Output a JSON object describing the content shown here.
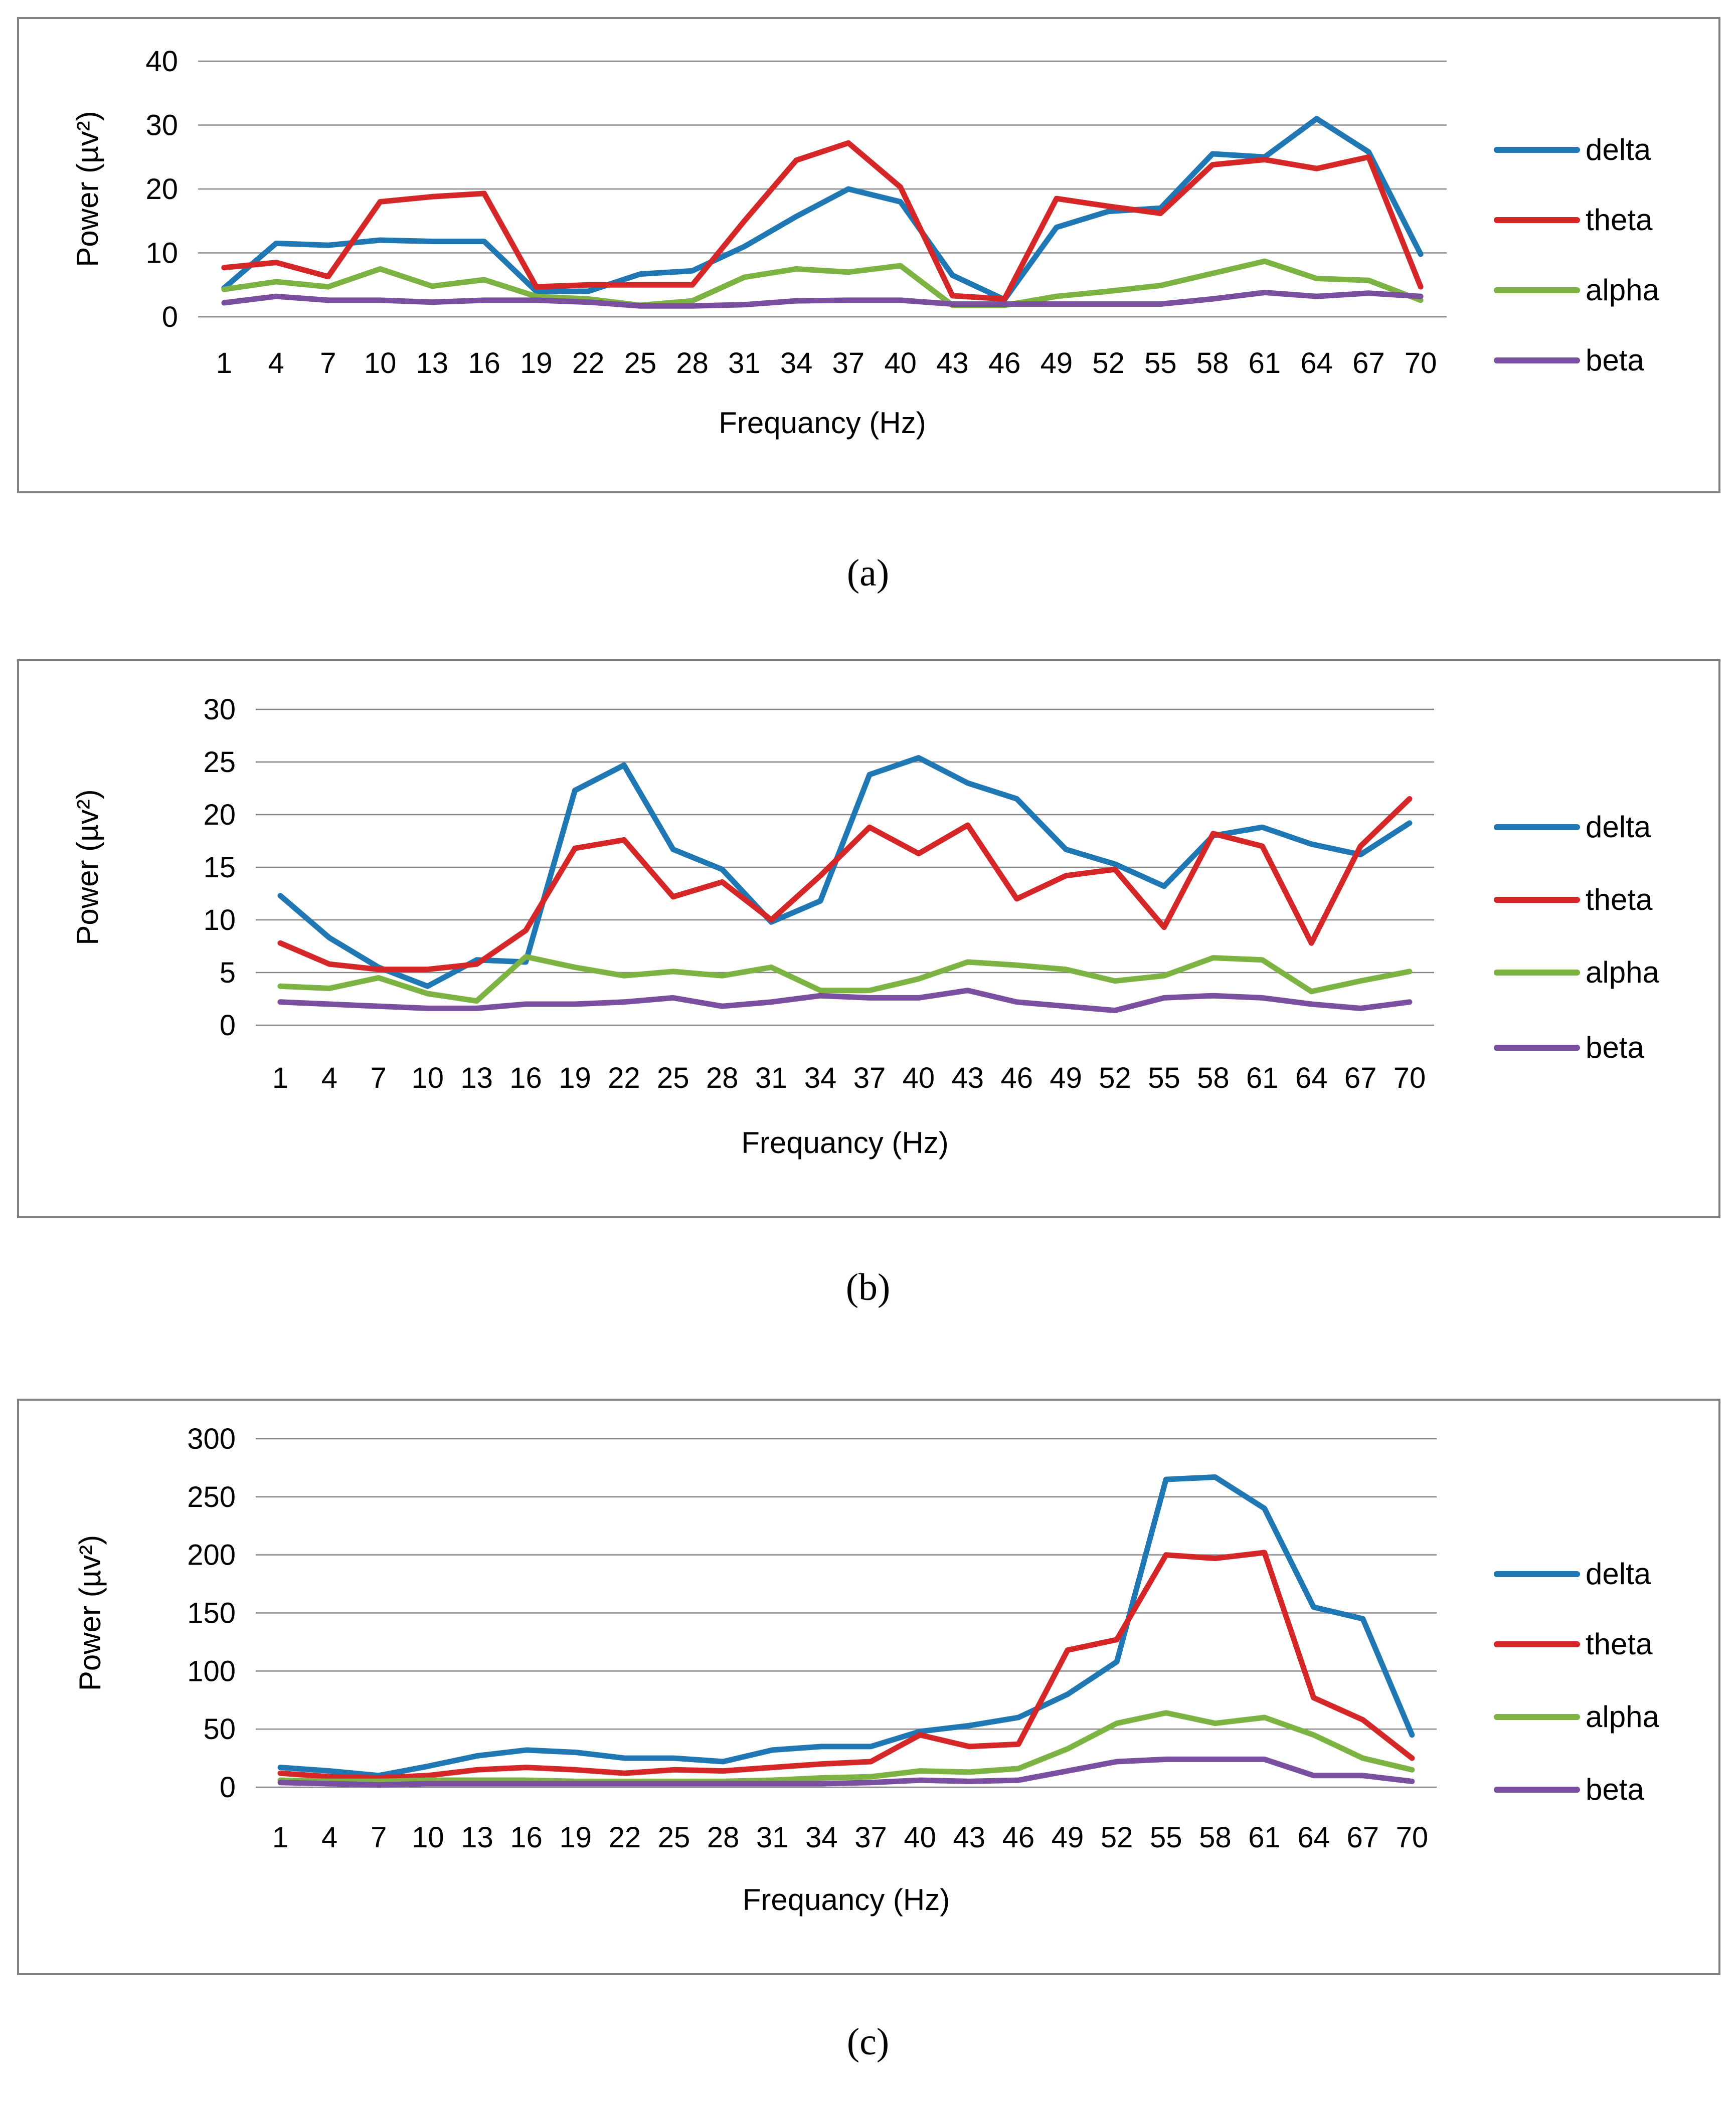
{
  "colors": {
    "delta": "#1f77b4",
    "theta": "#d62728",
    "alpha": "#7cb342",
    "beta": "#7b4fa0"
  },
  "chart_data": [
    {
      "type": "line",
      "caption": "(a)",
      "xlabel": "Frequancy (Hz)",
      "ylabel": "Power (µv²)",
      "ylim": [
        0,
        40
      ],
      "yticks": [
        0,
        10,
        20,
        30,
        40
      ],
      "grid": true,
      "legend": "right",
      "x": [
        1,
        4,
        7,
        10,
        13,
        16,
        19,
        22,
        25,
        28,
        31,
        34,
        37,
        40,
        43,
        46,
        49,
        52,
        55,
        58,
        61,
        64,
        67,
        70
      ],
      "series": [
        {
          "name": "delta",
          "values": [
            4.5,
            11.5,
            11.2,
            12,
            11.8,
            11.8,
            4,
            4,
            6.7,
            7.2,
            11,
            15.7,
            20,
            18,
            6.5,
            2.7,
            14,
            16.5,
            17,
            25.5,
            25,
            31,
            25.8,
            9.8
          ]
        },
        {
          "name": "theta",
          "values": [
            7.7,
            8.5,
            6.3,
            18,
            18.8,
            19.3,
            4.7,
            5,
            5,
            5,
            15,
            24.5,
            27.2,
            20.3,
            3.3,
            2.8,
            18.5,
            17.3,
            16.2,
            23.8,
            24.6,
            23.2,
            25,
            4.7
          ]
        },
        {
          "name": "alpha",
          "values": [
            4.3,
            5.5,
            4.7,
            7.5,
            4.8,
            5.8,
            3.2,
            2.8,
            1.8,
            2.5,
            6.2,
            7.5,
            7,
            8,
            1.8,
            1.8,
            3.2,
            4,
            4.9,
            6.8,
            8.7,
            6,
            5.7,
            2.6
          ]
        },
        {
          "name": "beta",
          "values": [
            2.2,
            3.2,
            2.6,
            2.6,
            2.3,
            2.6,
            2.6,
            2.3,
            1.7,
            1.7,
            1.9,
            2.5,
            2.6,
            2.6,
            2,
            2,
            2,
            2,
            2,
            2.8,
            3.8,
            3.2,
            3.7,
            3.2
          ]
        }
      ]
    },
    {
      "type": "line",
      "caption": "(b)",
      "xlabel": "Frequancy (Hz)",
      "ylabel": "Power (µv²)",
      "ylim": [
        0,
        30
      ],
      "yticks": [
        0,
        5,
        10,
        15,
        20,
        25,
        30
      ],
      "grid": true,
      "legend": "right",
      "x": [
        1,
        4,
        7,
        10,
        13,
        16,
        19,
        22,
        25,
        28,
        31,
        34,
        37,
        40,
        43,
        46,
        49,
        52,
        55,
        58,
        61,
        64,
        67,
        70
      ],
      "series": [
        {
          "name": "delta",
          "values": [
            12.3,
            8.3,
            5.5,
            3.7,
            6.2,
            6,
            22.3,
            24.7,
            16.7,
            14.8,
            9.8,
            11.8,
            23.8,
            25.4,
            23,
            21.5,
            16.7,
            15.3,
            13.2,
            18,
            18.8,
            17.2,
            16.2,
            19.2
          ]
        },
        {
          "name": "theta",
          "values": [
            7.8,
            5.8,
            5.3,
            5.3,
            5.8,
            9,
            16.8,
            17.6,
            12.2,
            13.6,
            10,
            14.2,
            18.8,
            16.3,
            19,
            12,
            14.2,
            14.8,
            9.3,
            18.2,
            17,
            7.8,
            17,
            21.5
          ]
        },
        {
          "name": "alpha",
          "values": [
            3.7,
            3.5,
            4.5,
            3,
            2.3,
            6.5,
            5.5,
            4.7,
            5.1,
            4.7,
            5.5,
            3.3,
            3.3,
            4.4,
            6,
            5.7,
            5.3,
            4.2,
            4.7,
            6.4,
            6.2,
            3.2,
            4.2,
            5.1
          ]
        },
        {
          "name": "beta",
          "values": [
            2.2,
            2,
            1.8,
            1.6,
            1.6,
            2,
            2,
            2.2,
            2.6,
            1.8,
            2.2,
            2.8,
            2.6,
            2.6,
            3.3,
            2.2,
            1.8,
            1.4,
            2.6,
            2.8,
            2.6,
            2,
            1.6,
            2.2
          ]
        }
      ]
    },
    {
      "type": "line",
      "caption": "(c)",
      "xlabel": "Frequancy (Hz)",
      "ylabel": "Power (µv²)",
      "ylim": [
        0,
        300
      ],
      "yticks": [
        0,
        50,
        100,
        150,
        200,
        250,
        300
      ],
      "grid": true,
      "legend": "right",
      "x": [
        1,
        4,
        7,
        10,
        13,
        16,
        19,
        22,
        25,
        28,
        31,
        34,
        37,
        40,
        43,
        46,
        49,
        52,
        55,
        58,
        61,
        64,
        67,
        70
      ],
      "series": [
        {
          "name": "delta",
          "values": [
            17,
            14,
            10,
            18,
            27,
            32,
            30,
            25,
            25,
            22,
            32,
            35,
            35,
            48,
            53,
            60,
            80,
            108,
            265,
            267,
            240,
            155,
            145,
            45
          ]
        },
        {
          "name": "theta",
          "values": [
            12,
            9,
            8,
            10,
            15,
            17,
            15,
            12,
            15,
            14,
            17,
            20,
            22,
            45,
            35,
            37,
            118,
            127,
            200,
            197,
            202,
            77,
            58,
            25
          ]
        },
        {
          "name": "alpha",
          "values": [
            6,
            5,
            5,
            6,
            6,
            6,
            5,
            5,
            5,
            5,
            6,
            8,
            9,
            14,
            13,
            16,
            33,
            55,
            64,
            55,
            60,
            45,
            25,
            15
          ]
        },
        {
          "name": "beta",
          "values": [
            4,
            3,
            2,
            3,
            3,
            3,
            3,
            3,
            3,
            3,
            3,
            3,
            4,
            6,
            5,
            6,
            14,
            22,
            24,
            24,
            24,
            10,
            10,
            5
          ]
        }
      ]
    }
  ]
}
